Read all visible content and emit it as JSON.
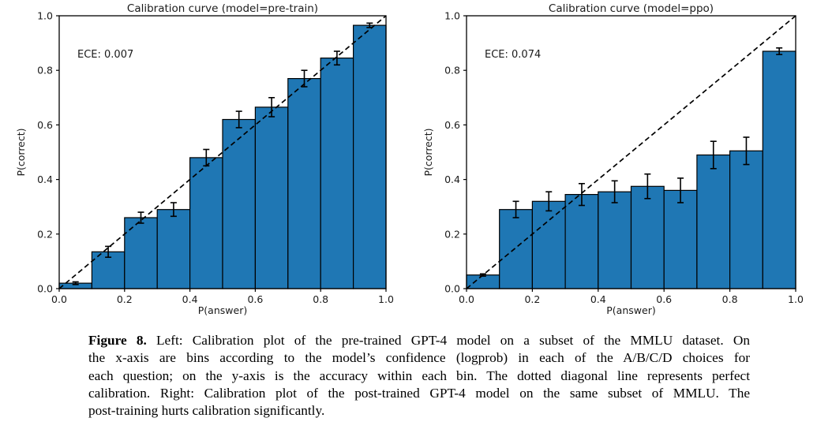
{
  "figure": {
    "caption": {
      "label": "Figure 8.",
      "lines": [
        "Left: Calibration plot of the pre-trained GPT-4 model on a subset of the MMLU dataset. On",
        "the x-axis are bins according to the model’s confidence (logprob) in each of the A/B/C/D choices for",
        "each question; on the y-axis is the accuracy within each bin. The dotted diagonal line represents perfect",
        "calibration. Right: Calibration plot of the post-trained GPT-4 model on the same subset of MMLU. The",
        "post-training hurts calibration significantly."
      ]
    }
  },
  "chart_data": [
    {
      "type": "bar",
      "title": "Calibration curve (model=pre-train)",
      "annotation": "ECE: 0.007",
      "xlabel": "P(answer)",
      "ylabel": "P(correct)",
      "xlim": [
        0.0,
        1.0
      ],
      "ylim": [
        0.0,
        1.0
      ],
      "xticks": [
        0.0,
        0.2,
        0.4,
        0.6,
        0.8,
        1.0
      ],
      "yticks": [
        0.0,
        0.2,
        0.4,
        0.6,
        0.8,
        1.0
      ],
      "grid": false,
      "bin_edges": [
        0.0,
        0.1,
        0.2,
        0.3,
        0.4,
        0.5,
        0.6,
        0.7,
        0.8,
        0.9,
        1.0
      ],
      "values": [
        0.02,
        0.135,
        0.26,
        0.29,
        0.48,
        0.62,
        0.665,
        0.77,
        0.845,
        0.965
      ],
      "errors": [
        0.005,
        0.02,
        0.02,
        0.025,
        0.03,
        0.03,
        0.035,
        0.03,
        0.025,
        0.008
      ],
      "bar_color": "#1f77b4",
      "bar_edge_color": "#000000",
      "diagonal": {
        "style": "dashed",
        "from": [
          0,
          0
        ],
        "to": [
          1,
          1
        ],
        "color": "#000000"
      }
    },
    {
      "type": "bar",
      "title": "Calibration curve (model=ppo)",
      "annotation": "ECE: 0.074",
      "xlabel": "P(answer)",
      "ylabel": "P(correct)",
      "xlim": [
        0.0,
        1.0
      ],
      "ylim": [
        0.0,
        1.0
      ],
      "xticks": [
        0.0,
        0.2,
        0.4,
        0.6,
        0.8,
        1.0
      ],
      "yticks": [
        0.0,
        0.2,
        0.4,
        0.6,
        0.8,
        1.0
      ],
      "grid": false,
      "bin_edges": [
        0.0,
        0.1,
        0.2,
        0.3,
        0.4,
        0.5,
        0.6,
        0.7,
        0.8,
        0.9,
        1.0
      ],
      "values": [
        0.05,
        0.29,
        0.32,
        0.345,
        0.355,
        0.375,
        0.36,
        0.49,
        0.505,
        0.87
      ],
      "errors": [
        0.004,
        0.03,
        0.035,
        0.04,
        0.04,
        0.045,
        0.045,
        0.05,
        0.05,
        0.012
      ],
      "bar_color": "#1f77b4",
      "bar_edge_color": "#000000",
      "diagonal": {
        "style": "dashed",
        "from": [
          0,
          0
        ],
        "to": [
          1,
          1
        ],
        "color": "#000000"
      }
    }
  ]
}
